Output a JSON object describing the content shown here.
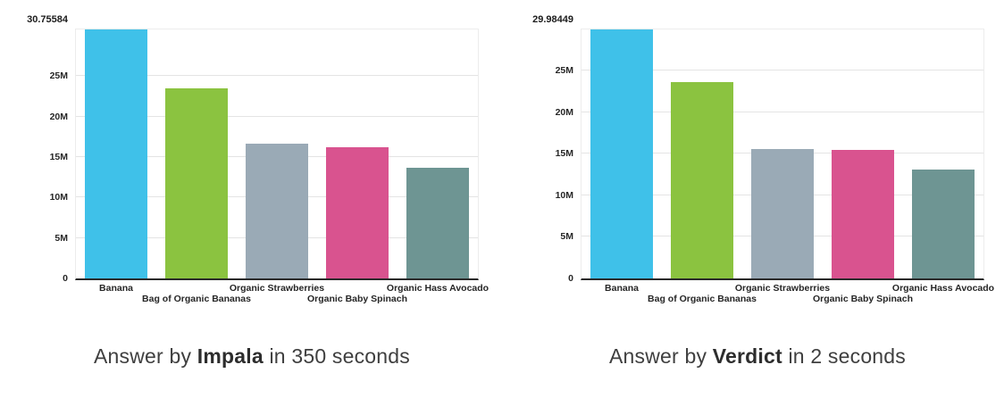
{
  "figure": {
    "background": "#ffffff"
  },
  "chart_data": [
    {
      "type": "bar",
      "title": "",
      "categories": [
        "Banana",
        "Bag of Organic Bananas",
        "Organic Strawberries",
        "Organic Baby Spinach",
        "Organic Hass Avocado"
      ],
      "values": [
        30.75584,
        23.5,
        16.7,
        16.2,
        13.7
      ],
      "values_unit": "millions",
      "bar_colors": [
        "#3fc1e9",
        "#8bc340",
        "#9aaab6",
        "#d9538f",
        "#6e9593"
      ],
      "ylim": [
        0,
        30.75584
      ],
      "y_axis_max_label": "30.75584",
      "y_ticks": [
        {
          "value": 0,
          "label": "0"
        },
        {
          "value": 5,
          "label": "5M"
        },
        {
          "value": 10,
          "label": "10M"
        },
        {
          "value": 15,
          "label": "15M"
        },
        {
          "value": 20,
          "label": "20M"
        },
        {
          "value": 25,
          "label": "25M"
        }
      ],
      "grid": "horizontal",
      "legend": "none",
      "xlabel": "",
      "ylabel": "",
      "caption": {
        "prefix": "Answer by ",
        "engine": "Impala",
        "suffix": " in 350 seconds"
      }
    },
    {
      "type": "bar",
      "title": "",
      "categories": [
        "Banana",
        "Bag of Organic Bananas",
        "Organic Strawberries",
        "Organic Baby Spinach",
        "Organic Hass Avocado"
      ],
      "values": [
        29.98449,
        23.6,
        15.6,
        15.5,
        13.1
      ],
      "values_unit": "millions",
      "bar_colors": [
        "#3fc1e9",
        "#8bc340",
        "#9aaab6",
        "#d9538f",
        "#6e9593"
      ],
      "ylim": [
        0,
        29.98449
      ],
      "y_axis_max_label": "29.98449",
      "y_ticks": [
        {
          "value": 0,
          "label": "0"
        },
        {
          "value": 5,
          "label": "5M"
        },
        {
          "value": 10,
          "label": "10M"
        },
        {
          "value": 15,
          "label": "15M"
        },
        {
          "value": 20,
          "label": "20M"
        },
        {
          "value": 25,
          "label": "25M"
        }
      ],
      "grid": "horizontal",
      "legend": "none",
      "xlabel": "",
      "ylabel": "",
      "caption": {
        "prefix": "Answer by ",
        "engine": "Verdict",
        "suffix": " in 2 seconds"
      }
    }
  ]
}
